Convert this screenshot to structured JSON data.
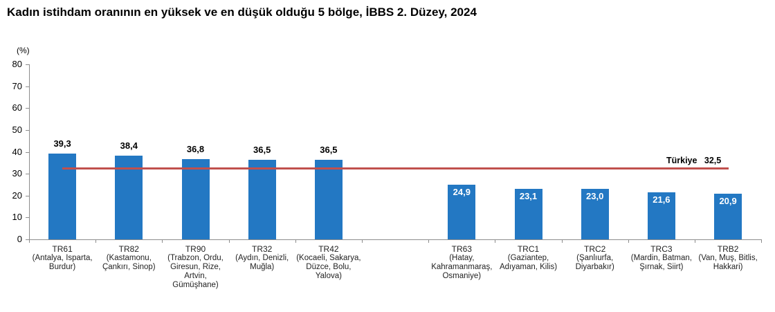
{
  "title": "Kadın istihdam oranının en yüksek ve en düşük olduğu 5 bölge, İBBS 2. Düzey, 2024",
  "y_unit": "(%)",
  "colors": {
    "bar": "#2378c3",
    "reference_line": "#c0504d",
    "axis": "#8c8c8c"
  },
  "reference": {
    "label": "Türkiye",
    "value_label": "32,5",
    "value": 32.5
  },
  "y_ticks": [
    "0",
    "10",
    "20",
    "30",
    "40",
    "50",
    "60",
    "70",
    "80"
  ],
  "bars": [
    {
      "code": "TR61",
      "provinces": "(Antalya, Isparta, Burdur)",
      "value": 39.3,
      "label": "39,3"
    },
    {
      "code": "TR82",
      "provinces": "(Kastamonu, Çankırı, Sinop)",
      "value": 38.4,
      "label": "38,4"
    },
    {
      "code": "TR90",
      "provinces": "(Trabzon, Ordu, Giresun, Rize, Artvin, Gümüşhane)",
      "value": 36.8,
      "label": "36,8"
    },
    {
      "code": "TR32",
      "provinces": "(Aydın, Denizli, Muğla)",
      "value": 36.5,
      "label": "36,5"
    },
    {
      "code": "TR42",
      "provinces": "(Kocaeli, Sakarya, Düzce, Bolu, Yalova)",
      "value": 36.5,
      "label": "36,5"
    },
    {
      "code": "TR63",
      "provinces": "(Hatay, Kahramanmaraş, Osmaniye)",
      "value": 24.9,
      "label": "24,9"
    },
    {
      "code": "TRC1",
      "provinces": "(Gaziantep, Adıyaman, Kilis)",
      "value": 23.1,
      "label": "23,1"
    },
    {
      "code": "TRC2",
      "provinces": "(Şanlıurfa, Diyarbakır)",
      "value": 23.0,
      "label": "23,0"
    },
    {
      "code": "TRC3",
      "provinces": "(Mardin, Batman, Şırnak, Siirt)",
      "value": 21.6,
      "label": "21,6"
    },
    {
      "code": "TRB2",
      "provinces": "(Van, Muş, Bitlis, Hakkari)",
      "value": 20.9,
      "label": "20,9"
    }
  ],
  "chart_data": {
    "type": "bar",
    "title": "Kadın istihdam oranının en yüksek ve en düşük olduğu 5 bölge, İBBS 2. Düzey, 2024",
    "xlabel": "",
    "ylabel": "(%)",
    "ylim": [
      0,
      80
    ],
    "yticks": [
      0,
      10,
      20,
      30,
      40,
      50,
      60,
      70,
      80
    ],
    "grid": false,
    "legend": "none",
    "categories": [
      "TR61 (Antalya, Isparta, Burdur)",
      "TR82 (Kastamonu, Çankırı, Sinop)",
      "TR90 (Trabzon, Ordu, Giresun, Rize, Artvin, Gümüşhane)",
      "TR32 (Aydın, Denizli, Muğla)",
      "TR42 (Kocaeli, Sakarya, Düzce, Bolu, Yalova)",
      "TR63 (Hatay, Kahramanmaraş, Osmaniye)",
      "TRC1 (Gaziantep, Adıyaman, Kilis)",
      "TRC2 (Şanlıurfa, Diyarbakır)",
      "TRC3 (Mardin, Batman, Şırnak, Siirt)",
      "TRB2 (Van, Muş, Bitlis, Hakkari)"
    ],
    "values": [
      39.3,
      38.4,
      36.8,
      36.5,
      36.5,
      24.9,
      23.1,
      23.0,
      21.6,
      20.9
    ],
    "annotations": [
      {
        "type": "horizontal_line",
        "label": "Türkiye 32,5",
        "value": 32.5,
        "color": "#c0504d"
      }
    ]
  }
}
